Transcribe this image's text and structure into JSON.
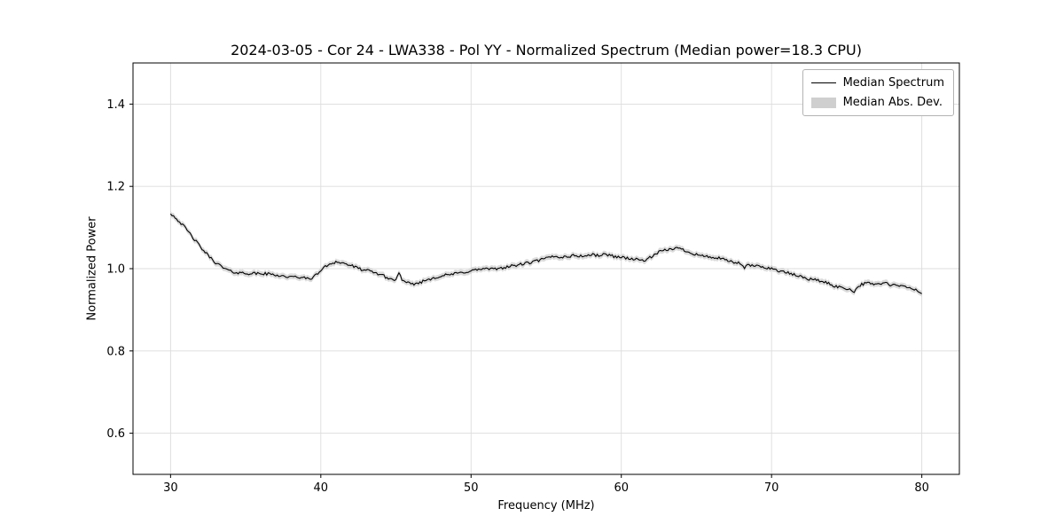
{
  "chart_data": {
    "type": "line",
    "title": "2024-03-05 - Cor 24 - LWA338 - Pol YY - Normalized Spectrum (Median power=18.3 CPU)",
    "xlabel": "Frequency (MHz)",
    "ylabel": "Normalized Power",
    "xlim": [
      27.5,
      82.5
    ],
    "ylim": [
      0.5,
      1.5
    ],
    "xticks": [
      30,
      40,
      50,
      60,
      70,
      80
    ],
    "yticks": [
      0.6,
      0.8,
      1.0,
      1.2,
      1.4
    ],
    "grid": true,
    "grid_color": "#dcdcdc",
    "line_color": "#000000",
    "band_color": "#c8c8c8",
    "mad_band_halfwidth": 0.007,
    "noise_amplitude": 0.0035,
    "legend": {
      "position": "upper right",
      "entries": [
        {
          "label": "Median Spectrum",
          "type": "line",
          "color": "#000000"
        },
        {
          "label": "Median Abs. Dev.",
          "type": "band",
          "color": "#cfcfcf"
        }
      ]
    },
    "series": [
      {
        "name": "Median Spectrum",
        "x": [
          30,
          30.5,
          31,
          31.5,
          32,
          32.5,
          33,
          33.5,
          34,
          34.5,
          35,
          35.5,
          36,
          36.5,
          37,
          37.5,
          38,
          38.5,
          39,
          39.5,
          40,
          40.5,
          41,
          41.5,
          42,
          42.5,
          43,
          43.5,
          44,
          44.5,
          45,
          45.2,
          45.4,
          45.6,
          46,
          46.5,
          47,
          47.5,
          48,
          48.5,
          49,
          49.5,
          50,
          50.5,
          51,
          51.5,
          52,
          52.5,
          53,
          53.5,
          54,
          54.5,
          55,
          55.5,
          56,
          56.5,
          57,
          57.5,
          58,
          58.5,
          59,
          59.5,
          60,
          60.5,
          61,
          61.5,
          62,
          62.5,
          63,
          63.5,
          64,
          64.5,
          65,
          65.5,
          66,
          66.5,
          67,
          67.5,
          68,
          68.2,
          68.4,
          68.6,
          69,
          69.5,
          70,
          70.5,
          71,
          71.5,
          72,
          72.5,
          73,
          73.5,
          74,
          74.5,
          75,
          75.5,
          75.8,
          76,
          76.5,
          77,
          77.5,
          78,
          78.5,
          79,
          79.5,
          80
        ],
        "y": [
          1.135,
          1.118,
          1.098,
          1.075,
          1.052,
          1.032,
          1.015,
          1.002,
          0.993,
          0.99,
          0.989,
          0.988,
          0.988,
          0.987,
          0.985,
          0.982,
          0.979,
          0.98,
          0.976,
          0.978,
          0.996,
          1.01,
          1.017,
          1.013,
          1.008,
          1.0,
          0.996,
          0.991,
          0.986,
          0.976,
          0.972,
          0.993,
          0.97,
          0.967,
          0.962,
          0.965,
          0.972,
          0.978,
          0.982,
          0.985,
          0.988,
          0.991,
          0.995,
          0.998,
          1.0,
          0.998,
          1.002,
          1.005,
          1.008,
          1.012,
          1.015,
          1.02,
          1.025,
          1.03,
          1.028,
          1.03,
          1.032,
          1.03,
          1.034,
          1.032,
          1.035,
          1.03,
          1.028,
          1.025,
          1.022,
          1.02,
          1.028,
          1.04,
          1.045,
          1.05,
          1.048,
          1.04,
          1.035,
          1.03,
          1.028,
          1.025,
          1.02,
          1.015,
          1.012,
          0.998,
          1.01,
          1.008,
          1.006,
          1.004,
          1.0,
          0.995,
          0.99,
          0.985,
          0.98,
          0.975,
          0.972,
          0.968,
          0.96,
          0.955,
          0.952,
          0.945,
          0.958,
          0.962,
          0.965,
          0.962,
          0.965,
          0.96,
          0.958,
          0.955,
          0.95,
          0.94
        ]
      }
    ]
  }
}
